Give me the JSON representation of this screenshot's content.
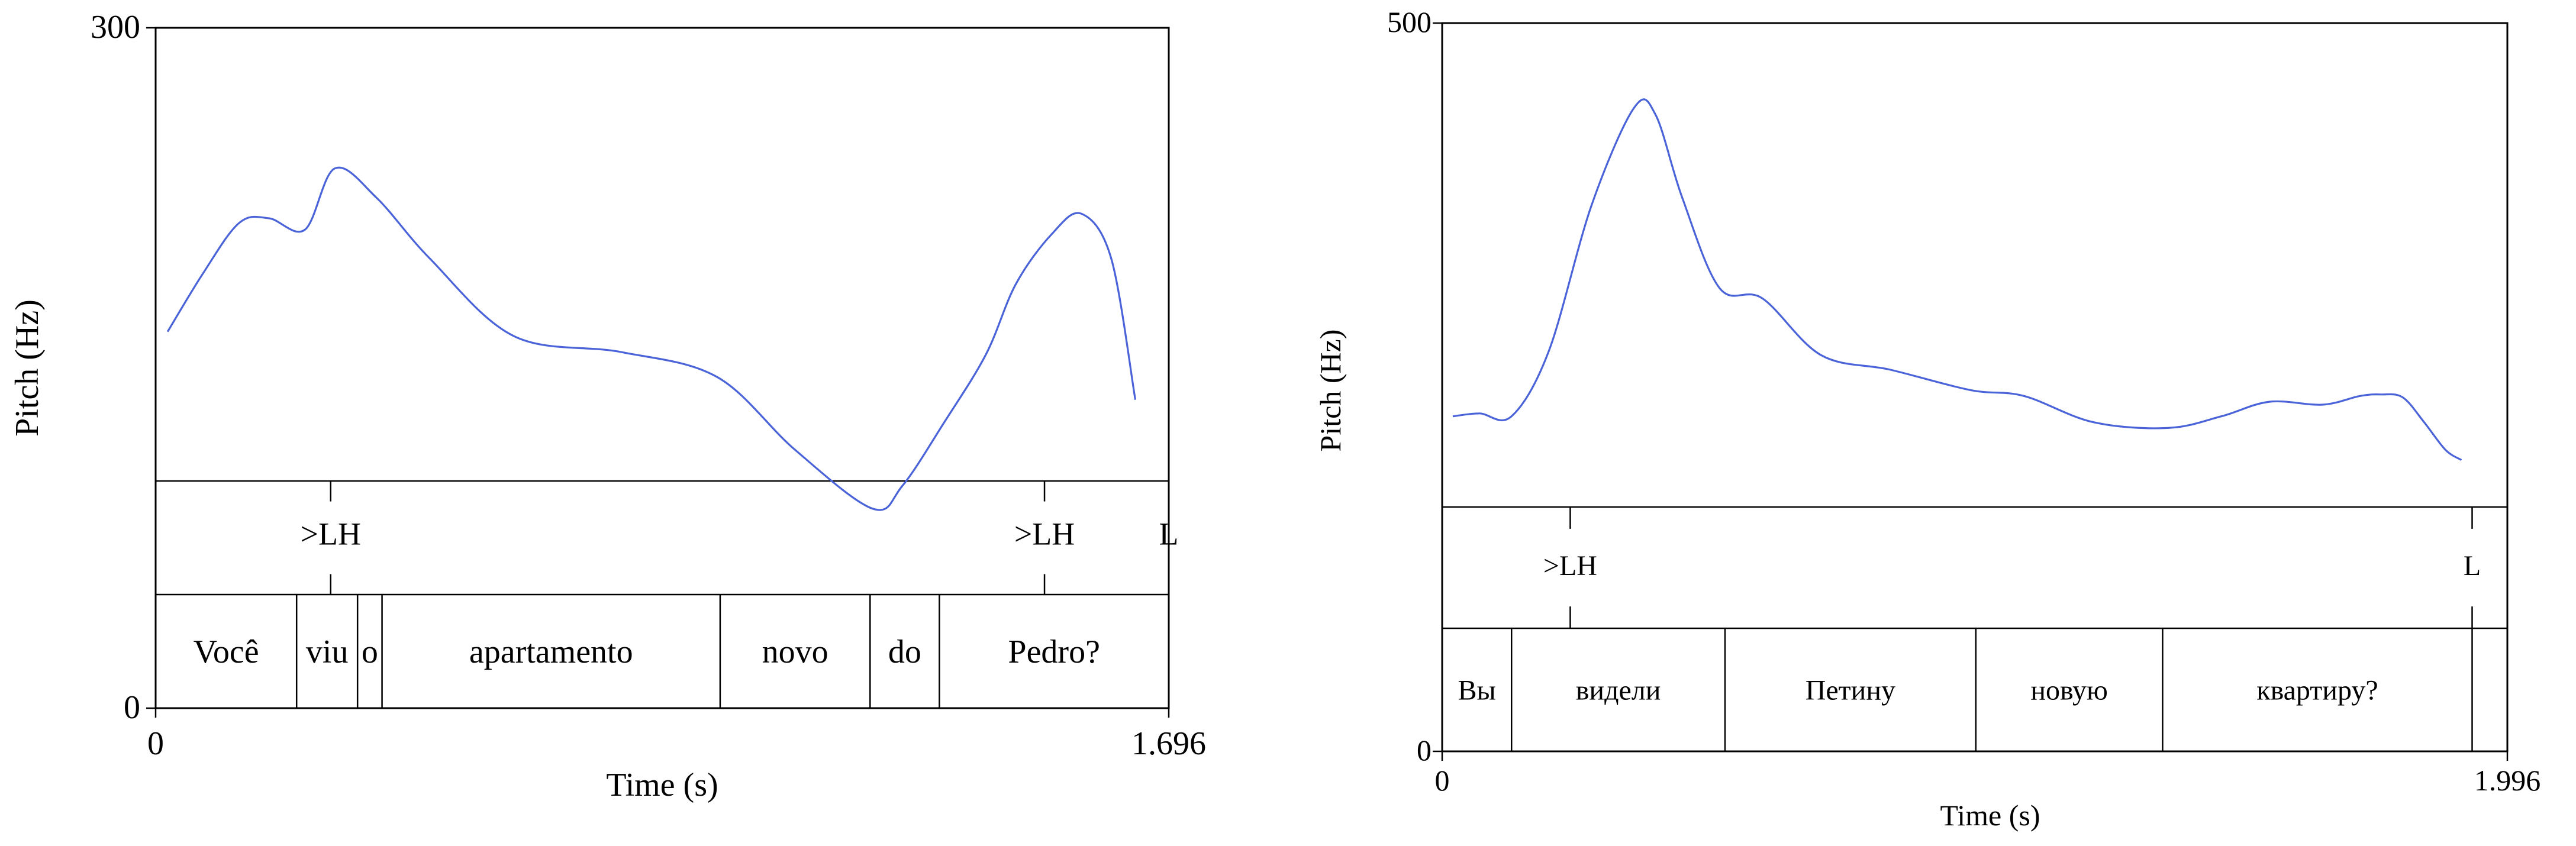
{
  "chart_data": [
    {
      "type": "line",
      "xlabel": "Time (s)",
      "ylabel": "Pitch (Hz)",
      "xlim": [
        0,
        1.696
      ],
      "ylim": [
        0,
        300
      ],
      "x_tick_labels": [
        "0",
        "1.696"
      ],
      "y_tick_labels": [
        "0",
        "300"
      ],
      "curve_color": "#4a63d8",
      "series": [
        {
          "x": [
            0.02,
            0.08,
            0.14,
            0.19,
            0.25,
            0.3,
            0.37,
            0.46,
            0.6,
            0.78,
            0.94,
            1.07,
            1.2,
            1.25,
            1.32,
            1.39,
            1.44,
            1.5,
            1.55,
            1.6,
            1.64
          ],
          "y": [
            166,
            192,
            214,
            216,
            211,
            238,
            225,
            198,
            164,
            157,
            146,
            114,
            88,
            98,
            126,
            156,
            187,
            209,
            218,
            198,
            136
          ]
        }
      ],
      "tones": [
        {
          "time": 0.293,
          "label": ">LH"
        },
        {
          "time": 1.488,
          "label": ">LH"
        },
        {
          "time": 1.696,
          "label": "L"
        }
      ],
      "words": [
        {
          "label": "Você",
          "start": 0.0,
          "end": 0.236
        },
        {
          "label": "viu",
          "start": 0.236,
          "end": 0.338
        },
        {
          "label": "o",
          "start": 0.338,
          "end": 0.379
        },
        {
          "label": "apartamento",
          "start": 0.379,
          "end": 0.945
        },
        {
          "label": "novo",
          "start": 0.945,
          "end": 1.196
        },
        {
          "label": "do",
          "start": 1.196,
          "end": 1.312
        },
        {
          "label": "Pedro?",
          "start": 1.312,
          "end": 1.696
        }
      ]
    },
    {
      "type": "line",
      "xlabel": "Time (s)",
      "ylabel": "Pitch (Hz)",
      "xlim": [
        0,
        1.996
      ],
      "ylim": [
        0,
        500
      ],
      "x_tick_labels": [
        "0",
        "1.996"
      ],
      "y_tick_labels": [
        "0",
        "500"
      ],
      "curve_color": "#4a63d8",
      "series": [
        {
          "x": [
            0.02,
            0.07,
            0.13,
            0.2,
            0.28,
            0.36,
            0.4,
            0.45,
            0.52,
            0.6,
            0.71,
            0.84,
            0.99,
            1.09,
            1.22,
            1.36,
            1.46,
            1.55,
            1.65,
            1.72,
            1.76,
            1.8,
            1.84,
            1.88,
            1.91
          ],
          "y": [
            230,
            232,
            230,
            275,
            375,
            442,
            437,
            380,
            318,
            311,
            272,
            262,
            248,
            244,
            226,
            222,
            230,
            240,
            238,
            244,
            245,
            243,
            226,
            207,
            200
          ]
        }
      ],
      "tones": [
        {
          "time": 0.24,
          "label": ">LH"
        },
        {
          "time": 1.93,
          "label": "L"
        }
      ],
      "words": [
        {
          "label": "Вы",
          "start": 0.0,
          "end": 0.13
        },
        {
          "label": "видели",
          "start": 0.13,
          "end": 0.53
        },
        {
          "label": "Петину",
          "start": 0.53,
          "end": 1.0
        },
        {
          "label": "новую",
          "start": 1.0,
          "end": 1.35
        },
        {
          "label": "квартиру?",
          "start": 1.35,
          "end": 1.93
        }
      ]
    }
  ]
}
